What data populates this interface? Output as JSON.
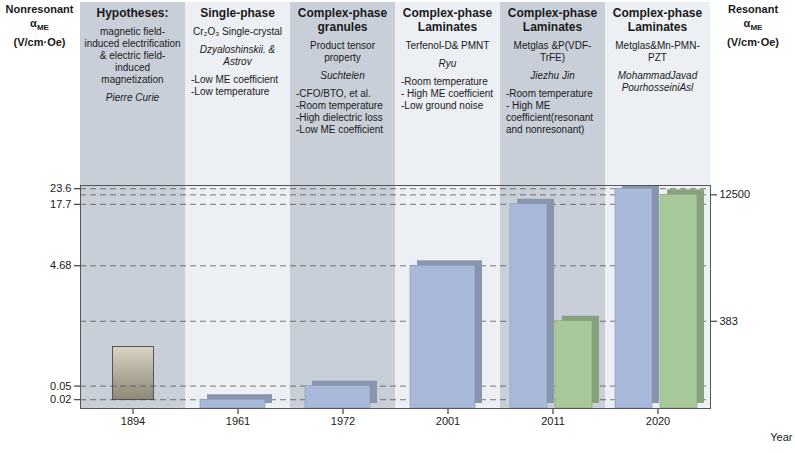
{
  "chart_data": {
    "type": "bar",
    "x_label": "Year",
    "y_label": "Nonresonant αME (V/cm·Oe)",
    "y2_label": "Resonant αME (V/cm·Oe)",
    "categories": [
      "1894",
      "1961",
      "1972",
      "2001",
      "2011",
      "2020"
    ],
    "series": [
      {
        "name": "Nonresonant",
        "color": "#a9b9d9",
        "values": [
          null,
          0.02,
          0.05,
          4.68,
          17.7,
          23.6
        ]
      },
      {
        "name": "Resonant",
        "color": "#a7c899",
        "axis": "y2",
        "values": [
          null,
          null,
          null,
          null,
          383,
          12500
        ]
      }
    ],
    "ylim": [
      0.01,
      25
    ],
    "yticks": [
      0.02,
      0.05,
      4.68,
      17.7,
      23.6
    ],
    "y2lim": [
      1,
      15000
    ],
    "y2ticks": [
      383,
      12500
    ],
    "grid": true,
    "columns": [
      {
        "title": "Hypotheses:",
        "material": "magnetic field-induced electrification & electric field-induced magnetization",
        "author": "Pierre Curie",
        "notes": []
      },
      {
        "title": "Single-phase",
        "material": "Cr₂O₃ Single-crystal",
        "author": "Dzyaloshinskii. & Astrov",
        "notes": [
          "-Low ME coefficient",
          "-Low temperature"
        ]
      },
      {
        "title": "Complex-phase granules",
        "material": "Product tensor property",
        "author": "Suchtelen",
        "notes": [
          "-CFO/BTO, et al.",
          "-Room temperature",
          "-High dielectric loss",
          "-Low ME coefficient"
        ]
      },
      {
        "title": "Complex-phase Laminates",
        "material": "Terfenol-D& PMNT",
        "author": "Ryu",
        "notes": [
          "-Room temperature",
          "- High ME coefficient",
          "-Low ground noise"
        ]
      },
      {
        "title": "Complex-phase Laminates",
        "material": "Metglas &P(VDF-TrFE)",
        "author": "Jiezhu Jin",
        "notes": [
          "-Room temperature",
          "- High ME coefficient(resonant and nonresonant)"
        ]
      },
      {
        "title": "Complex-phase Laminates",
        "material": "Metglas&Mn-PMN-PZT",
        "author": "MohammadJavad PourhosseiniAsl",
        "notes": []
      }
    ]
  }
}
